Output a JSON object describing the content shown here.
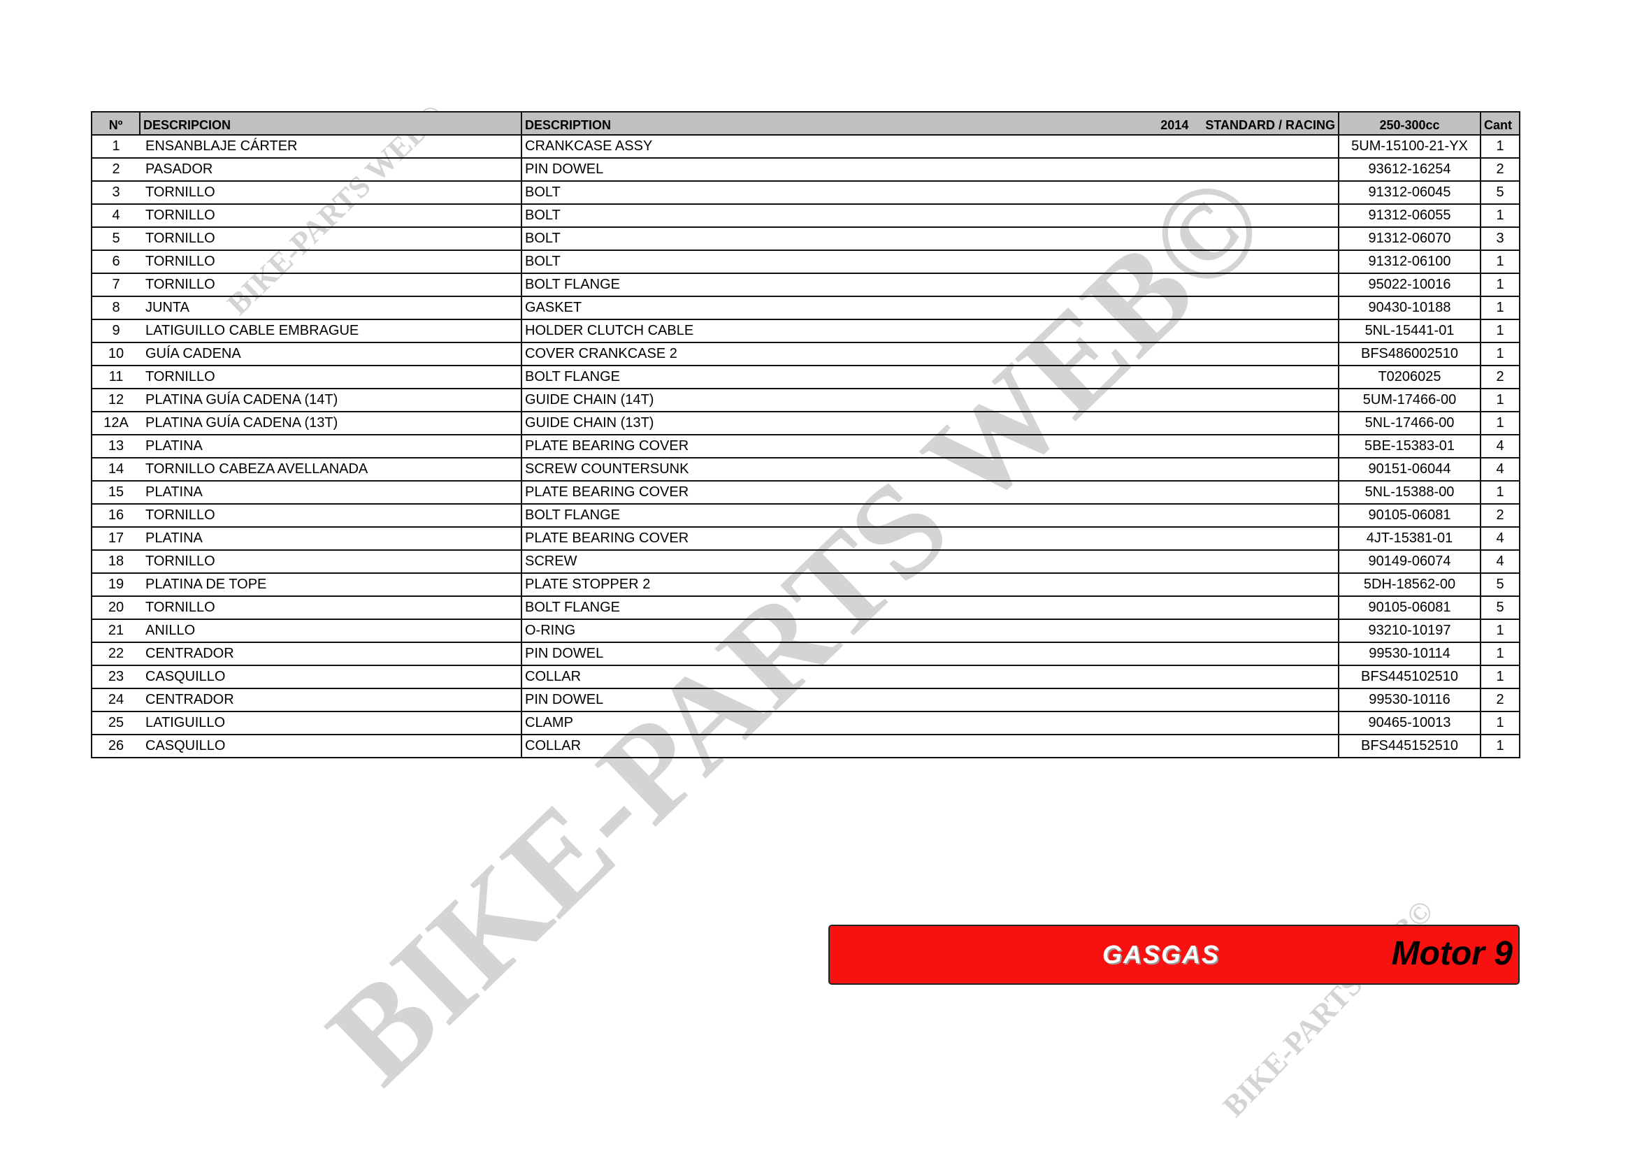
{
  "header": {
    "no": "Nº",
    "descripcion": "DESCRIPCION",
    "description": "DESCRIPTION",
    "year": "2014",
    "version": "STANDARD / RACING",
    "displacement": "250-300cc",
    "qty": "Cant"
  },
  "rows": [
    [
      "1",
      "ENSANBLAJE CÁRTER",
      "CRANKCASE ASSY",
      "5UM-15100-21-YX",
      "1"
    ],
    [
      "2",
      "PASADOR",
      "PIN DOWEL",
      "93612-16254",
      "2"
    ],
    [
      "3",
      "TORNILLO",
      "BOLT",
      "91312-06045",
      "5"
    ],
    [
      "4",
      "TORNILLO",
      "BOLT",
      "91312-06055",
      "1"
    ],
    [
      "5",
      "TORNILLO",
      "BOLT",
      "91312-06070",
      "3"
    ],
    [
      "6",
      "TORNILLO",
      "BOLT",
      "91312-06100",
      "1"
    ],
    [
      "7",
      "TORNILLO",
      "BOLT FLANGE",
      "95022-10016",
      "1"
    ],
    [
      "8",
      "JUNTA",
      "GASKET",
      "90430-10188",
      "1"
    ],
    [
      "9",
      "LATIGUILLO CABLE EMBRAGUE",
      "HOLDER CLUTCH CABLE",
      "5NL-15441-01",
      "1"
    ],
    [
      "10",
      "GUÍA CADENA",
      "COVER CRANKCASE 2",
      "BFS486002510",
      "1"
    ],
    [
      "11",
      "TORNILLO",
      "BOLT FLANGE",
      "T0206025",
      "2"
    ],
    [
      "12",
      "PLATINA GUÍA CADENA (14T)",
      "GUIDE CHAIN (14T)",
      "5UM-17466-00",
      "1"
    ],
    [
      "12A",
      "PLATINA GUÍA CADENA (13T)",
      "GUIDE CHAIN (13T)",
      "5NL-17466-00",
      "1"
    ],
    [
      "13",
      "PLATINA",
      "PLATE BEARING COVER",
      "5BE-15383-01",
      "4"
    ],
    [
      "14",
      "TORNILLO CABEZA AVELLANADA",
      "SCREW COUNTERSUNK",
      "90151-06044",
      "4"
    ],
    [
      "15",
      "PLATINA",
      "PLATE BEARING COVER",
      "5NL-15388-00",
      "1"
    ],
    [
      "16",
      "TORNILLO",
      "BOLT FLANGE",
      "90105-06081",
      "2"
    ],
    [
      "17",
      "PLATINA",
      "PLATE BEARING COVER",
      "4JT-15381-01",
      "4"
    ],
    [
      "18",
      "TORNILLO",
      "SCREW",
      "90149-06074",
      "4"
    ],
    [
      "19",
      "PLATINA DE TOPE",
      "PLATE STOPPER 2",
      "5DH-18562-00",
      "5"
    ],
    [
      "20",
      "TORNILLO",
      "BOLT FLANGE",
      "90105-06081",
      "5"
    ],
    [
      "21",
      "ANILLO",
      "O-RING",
      "93210-10197",
      "1"
    ],
    [
      "22",
      "CENTRADOR",
      "PIN DOWEL",
      "99530-10114",
      "1"
    ],
    [
      "23",
      "CASQUILLO",
      "COLLAR",
      "BFS445102510",
      "1"
    ],
    [
      "24",
      "CENTRADOR",
      "PIN DOWEL",
      "99530-10116",
      "2"
    ],
    [
      "25",
      "LATIGUILLO",
      "CLAMP",
      "90465-10013",
      "1"
    ],
    [
      "26",
      "CASQUILLO",
      "COLLAR",
      "BFS445152510",
      "1"
    ]
  ],
  "footer": {
    "brand": "GASGAS",
    "section": "Motor 9",
    "bg_color": "#f81111"
  },
  "watermark": "BIKE-PARTS WEB©"
}
